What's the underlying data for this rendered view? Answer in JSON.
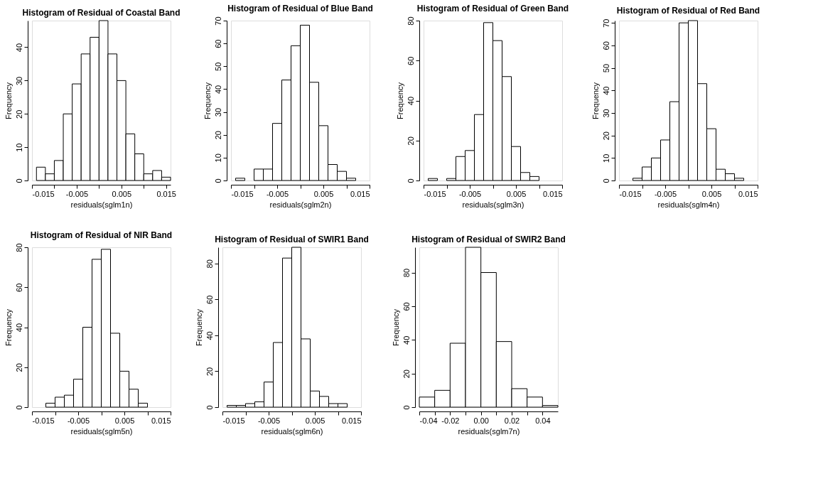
{
  "chart_data": [
    {
      "type": "histogram",
      "title": "Histogram of Residual of Coastal Band",
      "xlabel": "residuals(sglm1n)",
      "ylabel": "Frequency",
      "bins": [
        -0.014,
        -0.012,
        -0.01,
        -0.008,
        -0.006,
        -0.004,
        -0.002,
        0,
        0.002,
        0.004,
        0.006,
        0.008,
        0.01,
        0.012,
        0.014,
        0.016
      ],
      "values": [
        4,
        2,
        6,
        20,
        29,
        38,
        43,
        48,
        38,
        30,
        14,
        8,
        2,
        3,
        1
      ],
      "color": "#ffffff",
      "xlim": [
        -0.015,
        0.016
      ],
      "xticks": [
        -0.015,
        {
          "value": -0.01,
          "label": null
        },
        -0.005,
        {
          "value": 0,
          "label": null
        },
        0.005,
        {
          "value": 0.01,
          "label": null
        },
        0.015
      ],
      "ylim": [
        0,
        48
      ],
      "yticks": [
        0,
        10,
        20,
        30,
        40
      ],
      "grid": false
    },
    {
      "type": "histogram",
      "title": "Histogram of Residual of Blue Band",
      "xlabel": "residuals(sglm2n)",
      "ylabel": "Frequency",
      "bins": [
        -0.014,
        -0.012,
        -0.01,
        -0.008,
        -0.006,
        -0.004,
        -0.002,
        0,
        0.002,
        0.004,
        0.006,
        0.008,
        0.01,
        0.012
      ],
      "values": [
        1,
        0,
        5,
        5,
        25,
        44,
        59,
        68,
        43,
        24,
        7,
        4,
        1
      ],
      "color": "#ffffff",
      "xlim": [
        -0.015,
        0.015
      ],
      "xticks": [
        -0.015,
        {
          "value": -0.01,
          "label": null
        },
        -0.005,
        {
          "value": 0,
          "label": null
        },
        0.005,
        {
          "value": 0.01,
          "label": null
        },
        0.015
      ],
      "ylim": [
        0,
        70
      ],
      "yticks": [
        0,
        10,
        20,
        30,
        40,
        50,
        60,
        70
      ],
      "grid": false
    },
    {
      "type": "histogram",
      "title": "Histogram of Residual of Green Band",
      "xlabel": "residuals(sglm3n)",
      "ylabel": "Frequency",
      "bins": [
        -0.014,
        -0.012,
        -0.01,
        -0.008,
        -0.006,
        -0.004,
        -0.002,
        0,
        0.002,
        0.004,
        0.006,
        0.008,
        0.01
      ],
      "values": [
        1,
        0,
        1,
        12,
        15,
        33,
        79,
        70,
        52,
        17,
        4,
        2
      ],
      "color": "#ffffff",
      "xlim": [
        -0.015,
        0.015
      ],
      "xticks": [
        -0.015,
        {
          "value": -0.01,
          "label": null
        },
        -0.005,
        {
          "value": 0,
          "label": null
        },
        0.005,
        {
          "value": 0.01,
          "label": null
        },
        0.015
      ],
      "ylim": [
        0,
        80
      ],
      "yticks": [
        0,
        20,
        40,
        60,
        80
      ],
      "grid": false
    },
    {
      "type": "histogram",
      "title": "Histogram of Residual of Red Band",
      "xlabel": "residuals(sglm4n)",
      "ylabel": "Frequency",
      "bins": [
        -0.012,
        -0.01,
        -0.008,
        -0.006,
        -0.004,
        -0.002,
        0,
        0.002,
        0.004,
        0.006,
        0.008,
        0.01,
        0.012
      ],
      "values": [
        1,
        6,
        10,
        18,
        35,
        70,
        71,
        43,
        23,
        5,
        3,
        1
      ],
      "color": "#ffffff",
      "xlim": [
        -0.015,
        0.015
      ],
      "xticks": [
        -0.015,
        {
          "value": -0.01,
          "label": null
        },
        -0.005,
        {
          "value": 0,
          "label": null
        },
        0.005,
        {
          "value": 0.01,
          "label": null
        },
        0.015
      ],
      "ylim": [
        0,
        71
      ],
      "yticks": [
        0,
        10,
        20,
        30,
        40,
        50,
        60,
        70
      ],
      "grid": false
    },
    {
      "type": "histogram",
      "title": "Histogram of Residual of NIR Band",
      "xlabel": "residuals(sglm5n)",
      "ylabel": "Frequency",
      "bins": [
        -0.012,
        -0.01,
        -0.008,
        -0.006,
        -0.004,
        -0.002,
        0,
        0.002,
        0.004,
        0.006,
        0.008,
        0.01
      ],
      "values": [
        2,
        5,
        6,
        14,
        40,
        74,
        79,
        37,
        18,
        9,
        2
      ],
      "color": "#ffffff",
      "xlim": [
        -0.015,
        0.015
      ],
      "xticks": [
        -0.015,
        {
          "value": -0.01,
          "label": null
        },
        -0.005,
        {
          "value": 0,
          "label": null
        },
        0.005,
        {
          "value": 0.01,
          "label": null
        },
        0.015
      ],
      "ylim": [
        0,
        80
      ],
      "yticks": [
        0,
        20,
        40,
        60,
        80
      ],
      "grid": false
    },
    {
      "type": "histogram",
      "title": "Histogram of Residual of SWIR1 Band",
      "xlabel": "residuals(sglm6n)",
      "ylabel": "Frequency",
      "bins": [
        -0.014,
        -0.012,
        -0.01,
        -0.008,
        -0.006,
        -0.004,
        -0.002,
        0,
        0.002,
        0.004,
        0.006,
        0.008,
        0.01,
        0.012
      ],
      "values": [
        1,
        1,
        2,
        3,
        14,
        36,
        83,
        89,
        38,
        9,
        6,
        2,
        2
      ],
      "color": "#ffffff",
      "xlim": [
        -0.015,
        0.015
      ],
      "xticks": [
        -0.015,
        {
          "value": -0.01,
          "label": null
        },
        -0.005,
        {
          "value": 0,
          "label": null
        },
        0.005,
        {
          "value": 0.01,
          "label": null
        },
        0.015
      ],
      "ylim": [
        0,
        89
      ],
      "yticks": [
        0,
        20,
        40,
        60,
        80
      ],
      "grid": false
    },
    {
      "type": "histogram",
      "title": "Histogram of Residual of SWIR2 Band",
      "xlabel": "residuals(sglm7n)",
      "ylabel": "Frequency",
      "bins": [
        -0.04,
        -0.03,
        -0.02,
        -0.01,
        0,
        0.01,
        0.02,
        0.03,
        0.04,
        0.05
      ],
      "values": [
        6,
        10,
        38,
        95,
        80,
        39,
        11,
        6,
        1
      ],
      "color": "#ffffff",
      "xlim": [
        -0.04,
        0.05
      ],
      "xticks": [
        -0.04,
        {
          "value": -0.03,
          "label": null
        },
        -0.02,
        {
          "value": -0.01,
          "label": null
        },
        {
          "value": 0,
          "label": "0.00"
        },
        {
          "value": 0.01,
          "label": null
        },
        0.02,
        {
          "value": 0.03,
          "label": null
        },
        0.04
      ],
      "ylim": [
        0,
        95
      ],
      "yticks": [
        0,
        20,
        40,
        60,
        80
      ],
      "grid": false
    }
  ]
}
